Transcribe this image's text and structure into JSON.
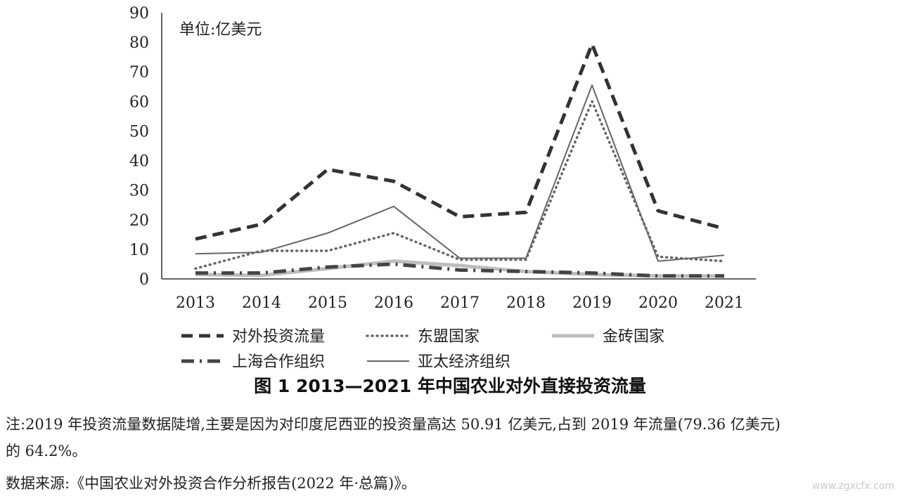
{
  "chart_data": {
    "type": "line",
    "unit_label": "单位:亿美元",
    "categories": [
      "2013",
      "2014",
      "2015",
      "2016",
      "2017",
      "2018",
      "2019",
      "2020",
      "2021"
    ],
    "y_ticks": [
      0,
      10,
      20,
      30,
      40,
      50,
      60,
      70,
      80,
      90
    ],
    "ylim": [
      0,
      90
    ],
    "series": [
      {
        "name": "对外投资流量",
        "values": [
          13.5,
          18.5,
          37,
          33,
          21,
          22.5,
          79.36,
          23,
          17
        ],
        "color": "#333333",
        "style": "dashed-thick"
      },
      {
        "name": "东盟国家",
        "values": [
          3.5,
          9.5,
          9.5,
          15.5,
          6.5,
          6.5,
          60,
          7.5,
          6
        ],
        "color": "#666666",
        "style": "dotted"
      },
      {
        "name": "金砖国家",
        "values": [
          1.5,
          1.2,
          3.5,
          6,
          4.5,
          2.5,
          1.5,
          1,
          1
        ],
        "color": "#bdbdbd",
        "style": "solid-thick"
      },
      {
        "name": "上海合作组织",
        "values": [
          2,
          2,
          4,
          5,
          3,
          2.5,
          2,
          1,
          1
        ],
        "color": "#444444",
        "style": "dashdot"
      },
      {
        "name": "亚太经济组织",
        "values": [
          8.5,
          9,
          15.5,
          24.5,
          7,
          7,
          65.5,
          6,
          8
        ],
        "color": "#666666",
        "style": "solid-thin"
      }
    ],
    "legend_position": "bottom"
  },
  "caption": "图 1   2013—2021 年中国农业对外直接投资流量",
  "note_line1": "注:2019 年投资流量数据陡增,主要是因为对印度尼西亚的投资量高达 50.91 亿美元,占到 2019 年流量(79.36 亿美元)",
  "note_line2": "的 64.2%。",
  "source": "数据来源:《中国农业对外投资合作分析报告(2022 年·总篇)》。",
  "watermark": "www.zgxcfx.com"
}
